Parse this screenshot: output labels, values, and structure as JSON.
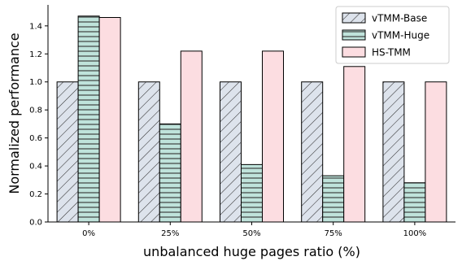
{
  "chart_data": {
    "type": "bar",
    "title": "",
    "xlabel": "unbalanced huge pages ratio (%)",
    "ylabel": "Normalized performance",
    "categories": [
      "0%",
      "25%",
      "50%",
      "75%",
      "100%"
    ],
    "ylim": [
      0,
      1.55
    ],
    "yticks": [
      "0.0",
      "0.2",
      "0.4",
      "0.6",
      "0.8",
      "1.0",
      "1.2",
      "1.4"
    ],
    "grid": false,
    "legend_position": "top-right",
    "series": [
      {
        "name": "vTMM-Base",
        "values": [
          1.0,
          1.0,
          1.0,
          1.0,
          1.0
        ],
        "color": "#dde3ec",
        "pattern": "diagonal-hatch"
      },
      {
        "name": "vTMM-Huge",
        "values": [
          1.47,
          0.7,
          0.41,
          0.33,
          0.28
        ],
        "color": "#bfe3db",
        "pattern": "horizontal-hatch"
      },
      {
        "name": "HS-TMM",
        "values": [
          1.46,
          1.22,
          1.22,
          1.11,
          1.0
        ],
        "color": "#fcdde1",
        "pattern": "solid"
      }
    ]
  }
}
